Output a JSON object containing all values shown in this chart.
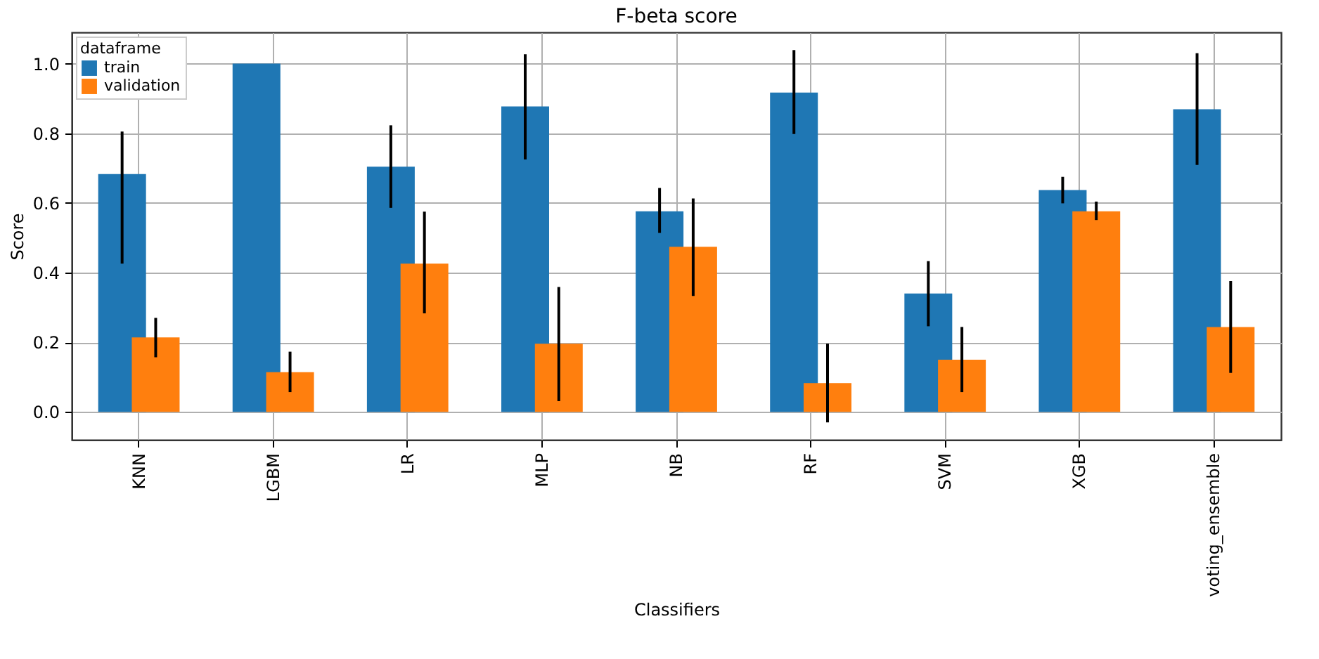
{
  "chart_data": {
    "type": "bar",
    "title": "F-beta score",
    "xlabel": "Classifiers",
    "ylabel": "Score",
    "legend_title": "dataframe",
    "categories": [
      "KNN",
      "LGBM",
      "LR",
      "MLP",
      "NB",
      "RF",
      "SVM",
      "XGB",
      "voting_ensemble"
    ],
    "series": [
      {
        "name": "train",
        "color": "#1f77b4",
        "values": [
          0.683,
          1.0,
          0.704,
          0.877,
          0.576,
          0.917,
          0.34,
          0.637,
          0.869
        ],
        "errors": [
          [
            0.426,
            0.805
          ],
          null,
          [
            0.586,
            0.823
          ],
          [
            0.725,
            1.027
          ],
          [
            0.514,
            0.643
          ],
          [
            0.798,
            1.039
          ],
          [
            0.246,
            0.433
          ],
          [
            0.599,
            0.675
          ],
          [
            0.709,
            1.03
          ]
        ]
      },
      {
        "name": "validation",
        "color": "#ff7f0e",
        "values": [
          0.214,
          0.114,
          0.426,
          0.196,
          0.474,
          0.083,
          0.15,
          0.576,
          0.244
        ],
        "errors": [
          [
            0.157,
            0.27
          ],
          [
            0.057,
            0.173
          ],
          [
            0.283,
            0.575
          ],
          [
            0.031,
            0.359
          ],
          [
            0.333,
            0.613
          ],
          [
            -0.03,
            0.196
          ],
          [
            0.057,
            0.244
          ],
          [
            0.551,
            0.604
          ],
          [
            0.112,
            0.376
          ]
        ]
      }
    ],
    "ylim": [
      -0.08,
      1.09
    ],
    "yticks": [
      {
        "value": 0,
        "label": "0.0"
      },
      0.2,
      0.4,
      0.6,
      0.8,
      {
        "value": 1,
        "label": "1.0"
      }
    ],
    "grid": true,
    "legend": "top left"
  }
}
